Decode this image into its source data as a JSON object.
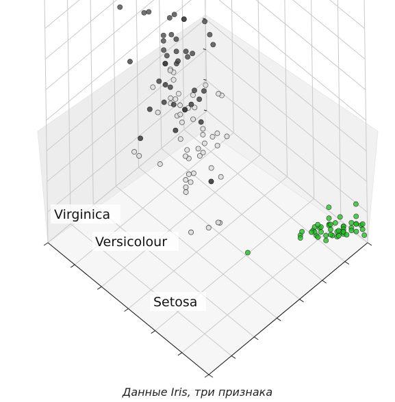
{
  "caption": "Данные Iris, три признака",
  "chart_data": {
    "type": "scatter",
    "projection": "3d",
    "grid": true,
    "ticks": {
      "x": 6,
      "y": 7,
      "z": 8
    },
    "tick_labels_shown": false,
    "cluster_labels": [
      "Virginica",
      "Versicolour",
      "Setosa"
    ],
    "colors": {
      "setosa": "#22bb22",
      "versicolour": "#dddddd",
      "virginica": "#3d3d3d"
    },
    "series": [
      {
        "name": "Setosa",
        "color": "#22bb22",
        "points": [
          [
            0.05,
            0.95,
            0.05
          ],
          [
            0.12,
            0.86,
            0.04
          ],
          [
            0.09,
            0.9,
            0.03
          ],
          [
            0.15,
            0.82,
            0.06
          ],
          [
            0.06,
            0.99,
            0.05
          ],
          [
            0.18,
            0.94,
            0.08
          ],
          [
            0.1,
            0.88,
            0.04
          ],
          [
            0.07,
            0.92,
            0.05
          ],
          [
            0.2,
            0.78,
            0.03
          ],
          [
            0.13,
            0.89,
            0.06
          ],
          [
            0.04,
            0.97,
            0.04
          ],
          [
            0.11,
            0.91,
            0.07
          ],
          [
            0.16,
            0.84,
            0.03
          ],
          [
            0.22,
            0.8,
            0.02
          ],
          [
            0.02,
            1.0,
            0.02
          ],
          [
            0.01,
            0.98,
            0.06
          ],
          [
            0.06,
            0.96,
            0.05
          ],
          [
            0.08,
            0.93,
            0.05
          ],
          [
            0.03,
            0.9,
            0.07
          ],
          [
            0.07,
            0.97,
            0.06
          ],
          [
            0.1,
            0.87,
            0.07
          ],
          [
            0.09,
            0.94,
            0.05
          ],
          [
            0.19,
            0.95,
            0.0
          ],
          [
            0.14,
            0.83,
            0.09
          ],
          [
            0.12,
            0.88,
            0.1
          ],
          [
            0.15,
            0.8,
            0.07
          ],
          [
            0.11,
            0.88,
            0.08
          ],
          [
            0.06,
            0.91,
            0.06
          ],
          [
            0.07,
            0.89,
            0.05
          ],
          [
            0.14,
            0.85,
            0.07
          ],
          [
            0.16,
            0.83,
            0.07
          ],
          [
            0.09,
            0.86,
            0.06
          ],
          [
            0.03,
            1.0,
            0.06
          ],
          [
            0.04,
            1.0,
            0.05
          ],
          [
            0.13,
            0.84,
            0.06
          ],
          [
            0.12,
            0.86,
            0.02
          ],
          [
            0.08,
            0.93,
            0.03
          ],
          [
            0.1,
            0.95,
            0.04
          ],
          [
            0.21,
            0.8,
            0.04
          ],
          [
            0.08,
            0.9,
            0.06
          ],
          [
            0.09,
            0.92,
            0.04
          ],
          [
            0.3,
            0.55,
            0.04
          ],
          [
            0.18,
            0.84,
            0.04
          ],
          [
            0.09,
            0.92,
            0.1
          ],
          [
            0.07,
            1.0,
            0.12
          ],
          [
            0.13,
            0.82,
            0.05
          ],
          [
            0.07,
            1.0,
            0.07
          ],
          [
            0.16,
            0.86,
            0.05
          ],
          [
            0.05,
            0.98,
            0.06
          ],
          [
            0.09,
            0.9,
            0.05
          ]
        ]
      },
      {
        "name": "Versicolour",
        "color": "#dddddd",
        "points": [
          [
            0.72,
            0.5,
            0.59
          ],
          [
            0.58,
            0.5,
            0.56
          ],
          [
            0.68,
            0.48,
            0.61
          ],
          [
            0.33,
            0.2,
            0.51
          ],
          [
            0.6,
            0.38,
            0.58
          ],
          [
            0.4,
            0.38,
            0.56
          ],
          [
            0.55,
            0.55,
            0.59
          ],
          [
            0.18,
            0.25,
            0.39
          ],
          [
            0.62,
            0.4,
            0.58
          ],
          [
            0.25,
            0.34,
            0.49
          ],
          [
            0.2,
            0.1,
            0.42
          ],
          [
            0.45,
            0.43,
            0.53
          ],
          [
            0.47,
            0.18,
            0.51
          ],
          [
            0.5,
            0.39,
            0.61
          ],
          [
            0.36,
            0.39,
            0.44
          ],
          [
            0.63,
            0.46,
            0.56
          ],
          [
            0.36,
            0.43,
            0.56
          ],
          [
            0.42,
            0.3,
            0.53
          ],
          [
            0.52,
            0.1,
            0.56
          ],
          [
            0.36,
            0.25,
            0.49
          ],
          [
            0.44,
            0.52,
            0.63
          ],
          [
            0.5,
            0.34,
            0.51
          ],
          [
            0.55,
            0.25,
            0.64
          ],
          [
            0.5,
            0.34,
            0.61
          ],
          [
            0.57,
            0.39,
            0.54
          ],
          [
            0.62,
            0.43,
            0.56
          ],
          [
            0.67,
            0.34,
            0.63
          ],
          [
            0.65,
            0.43,
            0.66
          ],
          [
            0.47,
            0.39,
            0.58
          ],
          [
            0.39,
            0.29,
            0.42
          ],
          [
            0.33,
            0.2,
            0.48
          ],
          [
            0.33,
            0.2,
            0.46
          ],
          [
            0.42,
            0.31,
            0.49
          ],
          [
            0.47,
            0.31,
            0.68
          ],
          [
            0.3,
            0.43,
            0.58
          ],
          [
            0.47,
            0.57,
            0.58
          ],
          [
            0.67,
            0.47,
            0.59
          ],
          [
            0.55,
            0.1,
            0.56
          ],
          [
            0.36,
            0.43,
            0.51
          ],
          [
            0.33,
            0.25,
            0.51
          ],
          [
            0.33,
            0.29,
            0.56
          ],
          [
            0.5,
            0.43,
            0.59
          ],
          [
            0.42,
            0.29,
            0.51
          ],
          [
            0.19,
            0.2,
            0.39
          ],
          [
            0.36,
            0.34,
            0.53
          ],
          [
            0.39,
            0.43,
            0.53
          ],
          [
            0.39,
            0.38,
            0.53
          ],
          [
            0.53,
            0.38,
            0.54
          ],
          [
            0.22,
            0.3,
            0.34
          ],
          [
            0.39,
            0.34,
            0.53
          ]
        ]
      },
      {
        "name": "Virginica",
        "color": "#3d3d3d",
        "points": [
          [
            0.55,
            0.55,
            0.85
          ],
          [
            0.42,
            0.29,
            0.7
          ],
          [
            0.78,
            0.43,
            0.83
          ],
          [
            0.55,
            0.38,
            0.78
          ],
          [
            0.61,
            0.43,
            0.81
          ],
          [
            0.92,
            0.43,
            0.95
          ],
          [
            0.17,
            0.2,
            0.59
          ],
          [
            0.83,
            0.38,
            0.9
          ],
          [
            0.67,
            0.2,
            0.81
          ],
          [
            0.8,
            0.72,
            0.86
          ],
          [
            0.61,
            0.5,
            0.7
          ],
          [
            0.58,
            0.29,
            0.73
          ],
          [
            0.69,
            0.43,
            0.76
          ],
          [
            0.39,
            0.2,
            0.68
          ],
          [
            0.42,
            0.33,
            0.7
          ],
          [
            0.58,
            0.5,
            0.73
          ],
          [
            0.61,
            0.43,
            0.76
          ],
          [
            0.94,
            0.82,
            0.97
          ],
          [
            0.94,
            0.25,
            1.0
          ],
          [
            0.47,
            0.06,
            0.68
          ],
          [
            0.72,
            0.5,
            0.8
          ],
          [
            0.36,
            0.33,
            0.66
          ],
          [
            0.94,
            0.33,
            0.97
          ],
          [
            0.55,
            0.29,
            0.66
          ],
          [
            0.67,
            0.54,
            0.8
          ],
          [
            0.81,
            0.5,
            0.85
          ],
          [
            0.53,
            0.33,
            0.64
          ],
          [
            0.5,
            0.43,
            0.66
          ],
          [
            0.58,
            0.33,
            0.78
          ],
          [
            0.81,
            0.43,
            0.81
          ],
          [
            0.86,
            0.33,
            0.86
          ],
          [
            1.0,
            0.82,
            0.92
          ],
          [
            0.58,
            0.33,
            0.78
          ],
          [
            0.55,
            0.33,
            0.7
          ],
          [
            0.5,
            0.25,
            0.78
          ],
          [
            0.94,
            0.43,
            0.86
          ],
          [
            0.55,
            0.58,
            0.78
          ],
          [
            0.58,
            0.46,
            0.76
          ],
          [
            0.47,
            0.43,
            0.64
          ],
          [
            0.72,
            0.46,
            0.75
          ],
          [
            0.67,
            0.46,
            0.78
          ],
          [
            0.72,
            0.46,
            0.69
          ],
          [
            0.42,
            0.29,
            0.7
          ],
          [
            0.69,
            0.5,
            0.83
          ],
          [
            0.67,
            0.54,
            0.8
          ],
          [
            0.67,
            0.43,
            0.71
          ],
          [
            0.55,
            0.2,
            0.68
          ],
          [
            0.61,
            0.43,
            0.71
          ],
          [
            0.53,
            0.58,
            0.75
          ],
          [
            0.44,
            0.43,
            0.69
          ]
        ]
      }
    ]
  }
}
